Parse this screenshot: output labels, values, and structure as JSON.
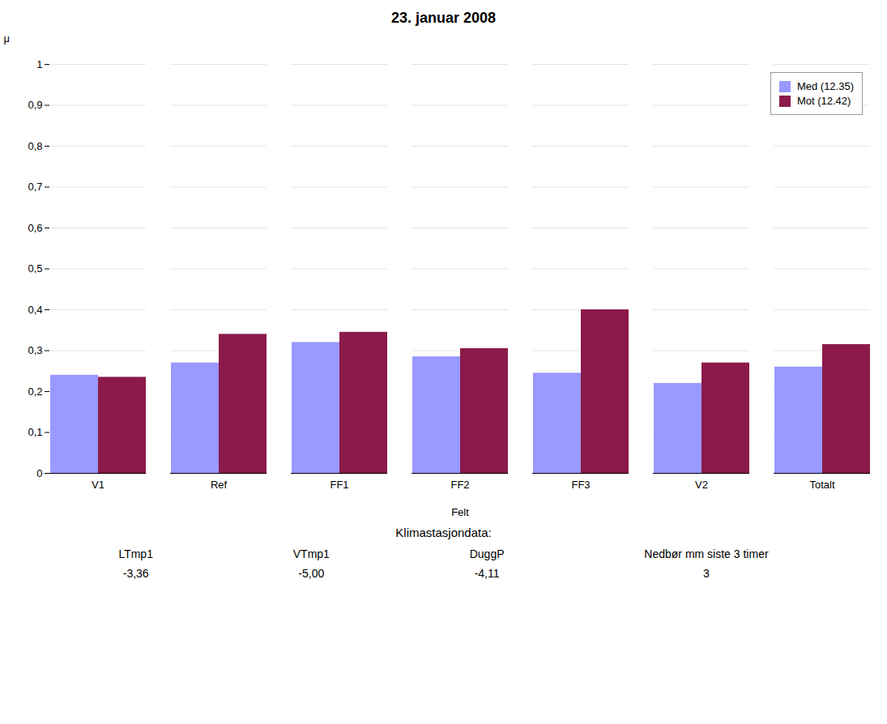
{
  "chart_data": {
    "type": "bar",
    "title": "23. januar 2008",
    "categories": [
      "V1",
      "Ref",
      "FF1",
      "FF2",
      "FF3",
      "V2",
      "Totalt"
    ],
    "series": [
      {
        "name": "Med (12.35)",
        "color": "#9999FF",
        "values": [
          0.24,
          0.27,
          0.32,
          0.285,
          0.245,
          0.22,
          0.26
        ]
      },
      {
        "name": "Mot (12.42)",
        "color": "#8B1A4A",
        "values": [
          0.235,
          0.34,
          0.345,
          0.305,
          0.4,
          0.27,
          0.315
        ]
      }
    ],
    "xlabel": "Felt",
    "ylabel": "μ",
    "ylim": [
      0,
      1.0
    ],
    "yticks": [
      0,
      {
        "value": 0.1,
        "label": "0,1"
      },
      {
        "value": 0.2,
        "label": "0,2"
      },
      {
        "value": 0.3,
        "label": "0,3"
      },
      {
        "value": 0.4,
        "label": "0,4"
      },
      {
        "value": 0.5,
        "label": "0,5"
      },
      {
        "value": 0.6,
        "label": "0,6"
      },
      {
        "value": 0.7,
        "label": "0,7"
      },
      {
        "value": 0.8,
        "label": "0,8"
      },
      {
        "value": 0.9,
        "label": "0,9"
      },
      1
    ],
    "grid": true,
    "legend": "upper right",
    "klimadata": {
      "title": "Klimastasjondata:",
      "labels": [
        "LTmp1",
        "VTmp1",
        "DuggP",
        "Nedbør mm siste 3 timer"
      ],
      "values": [
        "-3,36",
        "-5,00",
        "-4,11",
        "3"
      ]
    }
  }
}
